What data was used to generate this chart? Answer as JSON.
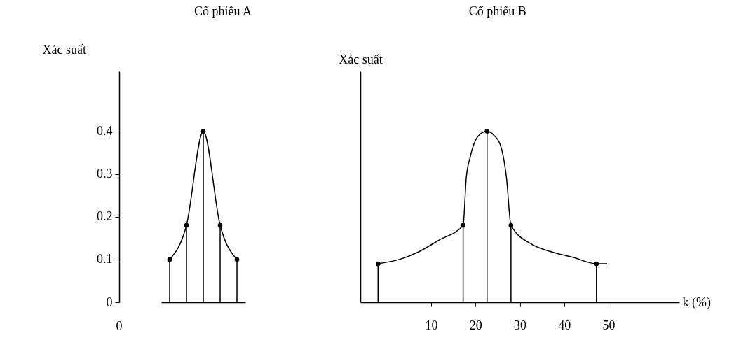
{
  "chart_data": [
    {
      "type": "lollipop",
      "title": "Cổ phiếu A",
      "ylabel": "Xác suất",
      "categories": [
        null,
        null,
        null,
        null,
        null
      ],
      "marker": "circle",
      "series": [
        {
          "color": "#000000",
          "values": [
            0.1,
            0.18,
            0.4,
            0.18,
            0.1
          ]
        },
        {
          "type": "line",
          "marker": "none",
          "color": "#000000",
          "values": [
            0.1,
            0.18,
            0.4,
            0.18,
            0.1
          ]
        }
      ],
      "ylim": [
        0,
        0.54
      ],
      "yticks": [
        0,
        0.1,
        0.2,
        0.3,
        0.4
      ],
      "annotations": [
        "0"
      ]
    },
    {
      "type": "lollipop",
      "title": "Cổ phiếu B",
      "ylabel": "Xác suất",
      "xlabel": "k (%)",
      "marker": "circle",
      "series": [
        {
          "color": "#000000",
          "x": [
            -2,
            17.2,
            22.6,
            28,
            47.3
          ],
          "values": [
            0.09,
            0.18,
            0.4,
            0.18,
            0.09
          ]
        },
        {
          "type": "line",
          "marker": "none",
          "color": "#000000",
          "x": [
            -2,
            2.8,
            7,
            11.7,
            17.2,
            17.9,
            18.8,
            20.7,
            22.6,
            24.2,
            25.7,
            27,
            28,
            32.8,
            36.5,
            42,
            47.3,
            49.7
          ],
          "values": [
            0.09,
            0.1,
            0.117,
            0.145,
            0.18,
            0.29,
            0.34,
            0.39,
            0.4,
            0.39,
            0.365,
            0.29,
            0.18,
            0.135,
            0.12,
            0.105,
            0.09,
            0.09
          ]
        }
      ],
      "xlim": [
        -6,
        66
      ],
      "xticks": [
        10,
        20,
        30,
        40,
        50
      ],
      "ylim": [
        0,
        0.54
      ],
      "tick_labels": "x"
    }
  ]
}
